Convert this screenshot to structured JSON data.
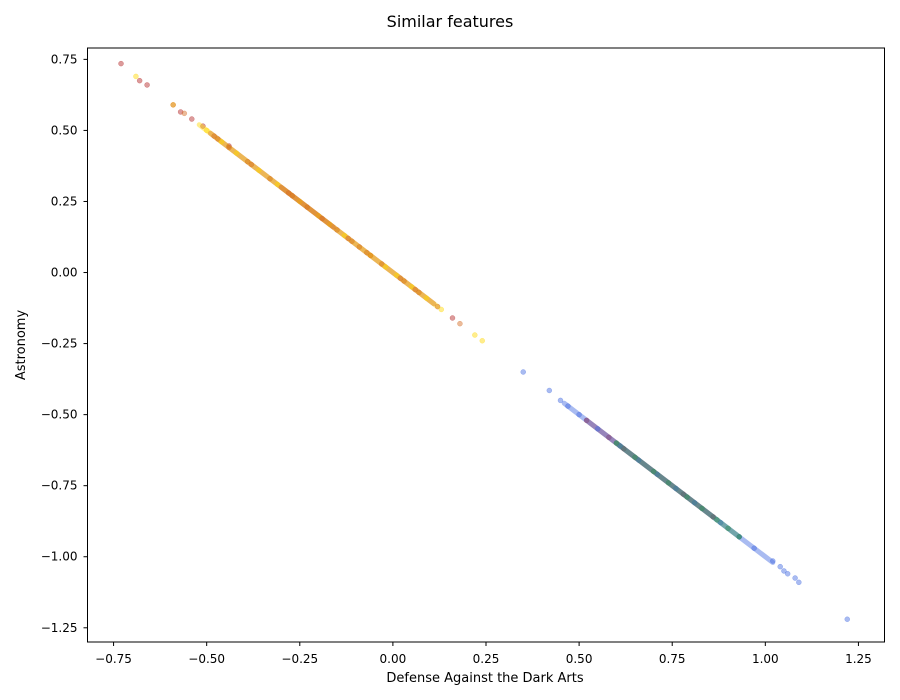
{
  "chart_data": {
    "type": "scatter",
    "title": "Similar features",
    "xlabel": "Defense Against the Dark Arts",
    "ylabel": "Astronomy",
    "xlim": [
      -0.82,
      1.32
    ],
    "ylim": [
      -1.3,
      0.79
    ],
    "xticks": [
      -0.75,
      -0.5,
      -0.25,
      0.0,
      0.25,
      0.5,
      0.75,
      1.0,
      1.25
    ],
    "xtick_labels": [
      "−0.75",
      "−0.50",
      "−0.25",
      "0.00",
      "0.25",
      "0.50",
      "0.75",
      "1.00",
      "1.25"
    ],
    "yticks": [
      -1.25,
      -1.0,
      -0.75,
      -0.5,
      -0.25,
      0.0,
      0.25,
      0.5,
      0.75
    ],
    "ytick_labels": [
      "−1.25",
      "−1.00",
      "−0.75",
      "−0.50",
      "−0.25",
      "0.00",
      "0.25",
      "0.50",
      "0.75"
    ],
    "grid": false,
    "series": [
      {
        "color": "#b22222",
        "alpha": 0.45,
        "segments": [
          [
            -0.49,
            0.49,
            0.11,
            -0.11
          ],
          [
            0.52,
            -0.52,
            0.86,
            -0.86
          ]
        ],
        "points": [
          [
            -0.73,
            0.735
          ],
          [
            -0.68,
            0.675
          ],
          [
            -0.66,
            0.66
          ],
          [
            -0.57,
            0.565
          ],
          [
            -0.54,
            0.54
          ],
          [
            -0.51,
            0.515
          ],
          [
            -0.47,
            0.47
          ],
          [
            -0.44,
            0.445
          ],
          [
            -0.39,
            0.39
          ],
          [
            -0.33,
            0.33
          ],
          [
            -0.27,
            0.27
          ],
          [
            -0.23,
            0.23
          ],
          [
            -0.15,
            0.15
          ],
          [
            -0.11,
            0.11
          ],
          [
            -0.09,
            0.09
          ],
          [
            -0.07,
            0.07
          ],
          [
            -0.03,
            0.03
          ],
          [
            0.03,
            -0.03
          ],
          [
            0.07,
            -0.07
          ],
          [
            0.12,
            -0.12
          ],
          [
            0.16,
            -0.16
          ],
          [
            0.52,
            -0.52
          ],
          [
            0.58,
            -0.58
          ],
          [
            0.62,
            -0.62
          ],
          [
            0.78,
            -0.78
          ],
          [
            0.86,
            -0.86
          ]
        ]
      },
      {
        "color": "#ffd700",
        "alpha": 0.45,
        "segments": [
          [
            -0.52,
            0.52,
            0.12,
            -0.12
          ]
        ],
        "points": [
          [
            -0.69,
            0.69
          ],
          [
            -0.59,
            0.59
          ],
          [
            -0.5,
            0.5
          ],
          [
            -0.46,
            0.46
          ],
          [
            -0.42,
            0.42
          ],
          [
            -0.36,
            0.36
          ],
          [
            -0.31,
            0.31
          ],
          [
            -0.25,
            0.25
          ],
          [
            -0.2,
            0.2
          ],
          [
            -0.17,
            0.17
          ],
          [
            -0.13,
            0.13
          ],
          [
            -0.06,
            0.06
          ],
          [
            -0.02,
            0.02
          ],
          [
            0.01,
            -0.01
          ],
          [
            0.05,
            -0.05
          ],
          [
            0.09,
            -0.09
          ],
          [
            0.13,
            -0.13
          ],
          [
            0.22,
            -0.22
          ],
          [
            0.24,
            -0.24
          ]
        ]
      },
      {
        "color": "#d2691e",
        "alpha": 0.45,
        "segments": [
          [
            -0.3,
            0.3,
            -0.16,
            0.16
          ]
        ],
        "points": [
          [
            -0.59,
            0.59
          ],
          [
            -0.56,
            0.56
          ],
          [
            -0.48,
            0.48
          ],
          [
            -0.44,
            0.44
          ],
          [
            -0.38,
            0.38
          ],
          [
            -0.28,
            0.28
          ],
          [
            -0.19,
            0.19
          ],
          [
            -0.12,
            0.12
          ],
          [
            -0.06,
            0.06
          ],
          [
            0.02,
            -0.02
          ],
          [
            0.06,
            -0.06
          ],
          [
            0.18,
            -0.18
          ]
        ]
      },
      {
        "color": "#4169e1",
        "alpha": 0.45,
        "segments": [
          [
            0.46,
            -0.46,
            1.02,
            -1.02
          ]
        ],
        "points": [
          [
            0.35,
            -0.35
          ],
          [
            0.42,
            -0.415
          ],
          [
            0.45,
            -0.45
          ],
          [
            0.47,
            -0.47
          ],
          [
            0.5,
            -0.5
          ],
          [
            0.55,
            -0.55
          ],
          [
            0.61,
            -0.61
          ],
          [
            0.66,
            -0.66
          ],
          [
            0.71,
            -0.71
          ],
          [
            0.76,
            -0.76
          ],
          [
            0.81,
            -0.81
          ],
          [
            0.88,
            -0.88
          ],
          [
            0.93,
            -0.93
          ],
          [
            0.97,
            -0.97
          ],
          [
            1.02,
            -1.015
          ],
          [
            1.04,
            -1.035
          ],
          [
            1.05,
            -1.05
          ],
          [
            1.06,
            -1.06
          ],
          [
            1.08,
            -1.075
          ],
          [
            1.09,
            -1.09
          ],
          [
            1.22,
            -1.22
          ]
        ]
      },
      {
        "color": "#2e8b57",
        "alpha": 0.45,
        "segments": [
          [
            0.6,
            -0.6,
            0.93,
            -0.93
          ]
        ],
        "points": [
          [
            0.6,
            -0.6
          ],
          [
            0.65,
            -0.65
          ],
          [
            0.7,
            -0.7
          ],
          [
            0.74,
            -0.74
          ],
          [
            0.79,
            -0.79
          ],
          [
            0.83,
            -0.83
          ],
          [
            0.87,
            -0.87
          ],
          [
            0.9,
            -0.9
          ],
          [
            0.93,
            -0.93
          ]
        ]
      }
    ]
  }
}
